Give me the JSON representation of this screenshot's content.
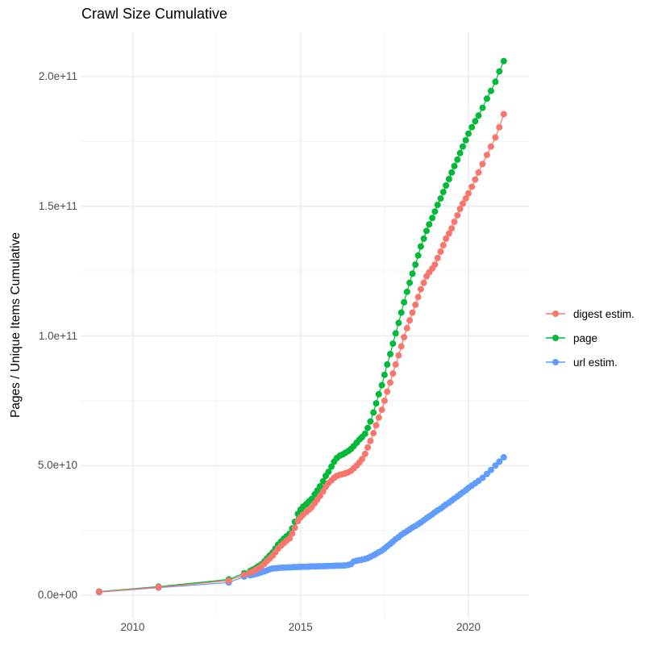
{
  "chart_data": {
    "type": "line",
    "title": "Crawl Size Cumulative",
    "xlabel": "",
    "ylabel": "Pages / Unique Items Cumulative",
    "value_unit": "billions of pages / unique items (1e9)",
    "xlim": [
      2008.45,
      2021.8
    ],
    "ylim_billions": [
      -8.7,
      217.1
    ],
    "x_major_ticks": [
      {
        "value": 2010,
        "label": "2010"
      },
      {
        "value": 2015,
        "label": "2015"
      },
      {
        "value": 2020,
        "label": "2020"
      }
    ],
    "x_minor_ticks": [
      2012.5,
      2017.5
    ],
    "y_major_ticks": [
      {
        "value": 0,
        "label": "0.0e+00"
      },
      {
        "value": 50,
        "label": "5.0e+10"
      },
      {
        "value": 100,
        "label": "1.0e+11"
      },
      {
        "value": 150,
        "label": "1.5e+11"
      },
      {
        "value": 200,
        "label": "2.0e+11"
      }
    ],
    "y_minor_ticks": [
      25,
      75,
      125,
      175
    ],
    "grid": {
      "major_color": "#EBEBEB",
      "minor_color": "#F3F3F3",
      "background": "#FFFFFF"
    },
    "style": {
      "point_radius": 4,
      "line_width": 1.2
    },
    "legend": {
      "position": "right",
      "items": [
        {
          "label": "digest estim.",
          "color": "#F8766D"
        },
        {
          "label": "page",
          "color": "#00BA38"
        },
        {
          "label": "url estim.",
          "color": "#619CFF"
        }
      ]
    },
    "series": [
      {
        "name": "url estim.",
        "color": "#619CFF",
        "points": [
          [
            2009.0,
            1.2
          ],
          [
            2010.77,
            2.9
          ],
          [
            2012.86,
            4.9
          ],
          [
            2013.32,
            7.2
          ],
          [
            2013.5,
            7.7
          ],
          [
            2013.58,
            7.9
          ],
          [
            2013.67,
            8.2
          ],
          [
            2013.75,
            8.5
          ],
          [
            2013.83,
            8.8
          ],
          [
            2013.92,
            9.2
          ],
          [
            2014.0,
            9.6
          ],
          [
            2014.08,
            10.0
          ],
          [
            2014.17,
            10.3
          ],
          [
            2014.25,
            10.4
          ],
          [
            2014.33,
            10.5
          ],
          [
            2014.42,
            10.6
          ],
          [
            2014.5,
            10.65
          ],
          [
            2014.58,
            10.7
          ],
          [
            2014.67,
            10.75
          ],
          [
            2014.75,
            10.8
          ],
          [
            2014.83,
            10.85
          ],
          [
            2014.92,
            10.9
          ],
          [
            2015.0,
            10.95
          ],
          [
            2015.08,
            11.0
          ],
          [
            2015.17,
            11.0
          ],
          [
            2015.25,
            11.05
          ],
          [
            2015.33,
            11.1
          ],
          [
            2015.42,
            11.1
          ],
          [
            2015.5,
            11.15
          ],
          [
            2015.58,
            11.2
          ],
          [
            2015.67,
            11.2
          ],
          [
            2015.75,
            11.25
          ],
          [
            2015.83,
            11.3
          ],
          [
            2015.92,
            11.3
          ],
          [
            2016.0,
            11.35
          ],
          [
            2016.08,
            11.4
          ],
          [
            2016.17,
            11.4
          ],
          [
            2016.25,
            11.45
          ],
          [
            2016.33,
            11.5
          ],
          [
            2016.42,
            11.7
          ],
          [
            2016.5,
            12.0
          ],
          [
            2016.58,
            13.0
          ],
          [
            2016.67,
            13.3
          ],
          [
            2016.75,
            13.5
          ],
          [
            2016.83,
            13.7
          ],
          [
            2016.92,
            14.0
          ],
          [
            2017.0,
            14.3
          ],
          [
            2017.08,
            14.8
          ],
          [
            2017.17,
            15.4
          ],
          [
            2017.25,
            16.0
          ],
          [
            2017.33,
            16.6
          ],
          [
            2017.42,
            17.2
          ],
          [
            2017.5,
            18.0
          ],
          [
            2017.58,
            18.9
          ],
          [
            2017.67,
            19.8
          ],
          [
            2017.75,
            20.7
          ],
          [
            2017.83,
            21.6
          ],
          [
            2017.92,
            22.4
          ],
          [
            2018.0,
            23.3
          ],
          [
            2018.08,
            24.0
          ],
          [
            2018.17,
            24.7
          ],
          [
            2018.25,
            25.4
          ],
          [
            2018.33,
            26.1
          ],
          [
            2018.42,
            26.7
          ],
          [
            2018.5,
            27.4
          ],
          [
            2018.58,
            28.1
          ],
          [
            2018.67,
            28.9
          ],
          [
            2018.75,
            29.7
          ],
          [
            2018.83,
            30.4
          ],
          [
            2018.92,
            31.2
          ],
          [
            2019.0,
            32.0
          ],
          [
            2019.08,
            32.7
          ],
          [
            2019.17,
            33.4
          ],
          [
            2019.25,
            34.2
          ],
          [
            2019.33,
            35.0
          ],
          [
            2019.42,
            35.7
          ],
          [
            2019.5,
            36.5
          ],
          [
            2019.58,
            37.3
          ],
          [
            2019.67,
            38.1
          ],
          [
            2019.75,
            38.9
          ],
          [
            2019.83,
            39.7
          ],
          [
            2019.92,
            40.5
          ],
          [
            2020.0,
            41.4
          ],
          [
            2020.1,
            42.3
          ],
          [
            2020.2,
            43.2
          ],
          [
            2020.3,
            44.1
          ],
          [
            2020.42,
            45.3
          ],
          [
            2020.55,
            46.8
          ],
          [
            2020.67,
            48.3
          ],
          [
            2020.8,
            50.0
          ],
          [
            2020.92,
            51.5
          ],
          [
            2021.05,
            53.2
          ]
        ]
      },
      {
        "name": "page",
        "color": "#00BA38",
        "points": [
          [
            2009.0,
            1.4
          ],
          [
            2010.77,
            3.3
          ],
          [
            2012.86,
            6.1
          ],
          [
            2013.32,
            8.5
          ],
          [
            2013.5,
            9.3
          ],
          [
            2013.58,
            9.9
          ],
          [
            2013.67,
            10.5
          ],
          [
            2013.75,
            11.2
          ],
          [
            2013.83,
            11.9
          ],
          [
            2013.92,
            13.0
          ],
          [
            2014.0,
            14.2
          ],
          [
            2014.08,
            15.3
          ],
          [
            2014.17,
            16.5
          ],
          [
            2014.25,
            18.0
          ],
          [
            2014.33,
            19.5
          ],
          [
            2014.42,
            20.7
          ],
          [
            2014.5,
            21.8
          ],
          [
            2014.58,
            22.7
          ],
          [
            2014.67,
            23.7
          ],
          [
            2014.75,
            25.8
          ],
          [
            2014.83,
            28.3
          ],
          [
            2014.92,
            31.4
          ],
          [
            2015.0,
            33.0
          ],
          [
            2015.08,
            34.2
          ],
          [
            2015.17,
            35.2
          ],
          [
            2015.25,
            36.2
          ],
          [
            2015.33,
            37.1
          ],
          [
            2015.42,
            38.9
          ],
          [
            2015.5,
            40.4
          ],
          [
            2015.58,
            42.0
          ],
          [
            2015.67,
            44.0
          ],
          [
            2015.75,
            46.0
          ],
          [
            2015.83,
            47.6
          ],
          [
            2015.92,
            49.6
          ],
          [
            2016.0,
            51.5
          ],
          [
            2016.08,
            52.9
          ],
          [
            2016.17,
            53.8
          ],
          [
            2016.25,
            54.3
          ],
          [
            2016.33,
            54.9
          ],
          [
            2016.42,
            55.6
          ],
          [
            2016.5,
            56.4
          ],
          [
            2016.58,
            57.5
          ],
          [
            2016.67,
            58.8
          ],
          [
            2016.75,
            60.0
          ],
          [
            2016.83,
            61.0
          ],
          [
            2016.92,
            62.3
          ],
          [
            2017.0,
            64.5
          ],
          [
            2017.08,
            67.0
          ],
          [
            2017.17,
            70.5
          ],
          [
            2017.25,
            74.0
          ],
          [
            2017.33,
            77.5
          ],
          [
            2017.42,
            81.0
          ],
          [
            2017.5,
            85.0
          ],
          [
            2017.58,
            89.0
          ],
          [
            2017.67,
            93.0
          ],
          [
            2017.75,
            97.0
          ],
          [
            2017.83,
            101.0
          ],
          [
            2017.92,
            105.0
          ],
          [
            2018.0,
            109.0
          ],
          [
            2018.08,
            113.0
          ],
          [
            2018.17,
            117.0
          ],
          [
            2018.25,
            120.5
          ],
          [
            2018.33,
            124.0
          ],
          [
            2018.42,
            127.5
          ],
          [
            2018.5,
            131.0
          ],
          [
            2018.58,
            134.5
          ],
          [
            2018.67,
            137.5
          ],
          [
            2018.75,
            140.5
          ],
          [
            2018.83,
            143.0
          ],
          [
            2018.92,
            145.5
          ],
          [
            2019.0,
            148.0
          ],
          [
            2019.08,
            150.5
          ],
          [
            2019.17,
            153.0
          ],
          [
            2019.25,
            155.5
          ],
          [
            2019.33,
            158.0
          ],
          [
            2019.42,
            160.5
          ],
          [
            2019.5,
            163.0
          ],
          [
            2019.58,
            165.5
          ],
          [
            2019.67,
            168.0
          ],
          [
            2019.75,
            170.5
          ],
          [
            2019.83,
            173.0
          ],
          [
            2019.92,
            175.5
          ],
          [
            2020.0,
            178.0
          ],
          [
            2020.1,
            180.5
          ],
          [
            2020.2,
            182.8
          ],
          [
            2020.3,
            185.0
          ],
          [
            2020.42,
            188.0
          ],
          [
            2020.55,
            191.5
          ],
          [
            2020.67,
            194.5
          ],
          [
            2020.8,
            198.0
          ],
          [
            2020.92,
            202.0
          ],
          [
            2021.05,
            206.0
          ]
        ]
      },
      {
        "name": "digest estim.",
        "color": "#F8766D",
        "points": [
          [
            2009.0,
            1.3
          ],
          [
            2010.77,
            3.1
          ],
          [
            2012.86,
            5.6
          ],
          [
            2013.32,
            7.9
          ],
          [
            2013.5,
            8.7
          ],
          [
            2013.58,
            9.2
          ],
          [
            2013.67,
            9.8
          ],
          [
            2013.75,
            10.4
          ],
          [
            2013.83,
            11.1
          ],
          [
            2013.92,
            12.1
          ],
          [
            2014.0,
            13.2
          ],
          [
            2014.08,
            14.2
          ],
          [
            2014.17,
            15.3
          ],
          [
            2014.25,
            16.6
          ],
          [
            2014.33,
            18.0
          ],
          [
            2014.42,
            19.1
          ],
          [
            2014.5,
            20.1
          ],
          [
            2014.58,
            21.0
          ],
          [
            2014.67,
            21.9
          ],
          [
            2014.75,
            23.8
          ],
          [
            2014.83,
            26.0
          ],
          [
            2014.92,
            28.6
          ],
          [
            2015.0,
            30.0
          ],
          [
            2015.08,
            31.1
          ],
          [
            2015.17,
            32.1
          ],
          [
            2015.25,
            33.0
          ],
          [
            2015.33,
            33.9
          ],
          [
            2015.42,
            35.5
          ],
          [
            2015.5,
            36.9
          ],
          [
            2015.58,
            38.3
          ],
          [
            2015.67,
            40.0
          ],
          [
            2015.75,
            41.8
          ],
          [
            2015.83,
            43.2
          ],
          [
            2015.92,
            44.3
          ],
          [
            2016.0,
            45.3
          ],
          [
            2016.08,
            46.0
          ],
          [
            2016.17,
            46.4
          ],
          [
            2016.25,
            46.7
          ],
          [
            2016.33,
            47.0
          ],
          [
            2016.42,
            47.4
          ],
          [
            2016.5,
            48.0
          ],
          [
            2016.58,
            48.9
          ],
          [
            2016.67,
            50.0
          ],
          [
            2016.75,
            51.2
          ],
          [
            2016.83,
            52.5
          ],
          [
            2016.92,
            54.5
          ],
          [
            2017.0,
            57.0
          ],
          [
            2017.08,
            59.5
          ],
          [
            2017.17,
            62.5
          ],
          [
            2017.25,
            65.5
          ],
          [
            2017.33,
            68.5
          ],
          [
            2017.42,
            71.5
          ],
          [
            2017.5,
            75.0
          ],
          [
            2017.58,
            78.5
          ],
          [
            2017.67,
            82.0
          ],
          [
            2017.75,
            85.5
          ],
          [
            2017.83,
            89.0
          ],
          [
            2017.92,
            92.5
          ],
          [
            2018.0,
            96.0
          ],
          [
            2018.08,
            99.5
          ],
          [
            2018.17,
            103.0
          ],
          [
            2018.25,
            106.0
          ],
          [
            2018.33,
            109.0
          ],
          [
            2018.42,
            112.0
          ],
          [
            2018.5,
            115.0
          ],
          [
            2018.58,
            118.0
          ],
          [
            2018.67,
            120.5
          ],
          [
            2018.75,
            123.0
          ],
          [
            2018.83,
            124.5
          ],
          [
            2018.92,
            126.0
          ],
          [
            2019.0,
            127.5
          ],
          [
            2019.08,
            130.0
          ],
          [
            2019.17,
            132.5
          ],
          [
            2019.25,
            135.0
          ],
          [
            2019.33,
            137.5
          ],
          [
            2019.42,
            139.5
          ],
          [
            2019.5,
            141.5
          ],
          [
            2019.58,
            144.0
          ],
          [
            2019.67,
            146.5
          ],
          [
            2019.75,
            149.0
          ],
          [
            2019.83,
            151.0
          ],
          [
            2019.92,
            153.0
          ],
          [
            2020.0,
            155.0
          ],
          [
            2020.1,
            157.5
          ],
          [
            2020.2,
            160.3
          ],
          [
            2020.3,
            163.0
          ],
          [
            2020.42,
            166.3
          ],
          [
            2020.55,
            169.8
          ],
          [
            2020.67,
            173.0
          ],
          [
            2020.8,
            176.5
          ],
          [
            2020.92,
            180.5
          ],
          [
            2021.05,
            185.5
          ]
        ]
      }
    ]
  }
}
